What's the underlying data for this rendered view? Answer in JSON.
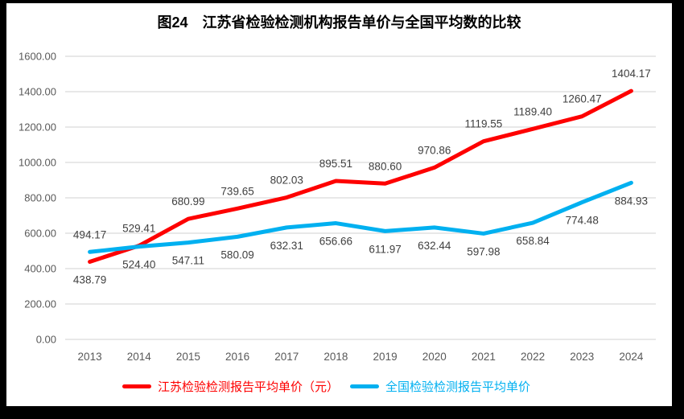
{
  "title": "图24　江苏省检验检测机构报告单价与全国平均数的比较",
  "chart_data": {
    "type": "line",
    "title": "图24　江苏省检验检测机构报告单价与全国平均数的比较",
    "categories": [
      "2013",
      "2014",
      "2015",
      "2016",
      "2017",
      "2018",
      "2019",
      "2020",
      "2021",
      "2022",
      "2023",
      "2024"
    ],
    "series": [
      {
        "name": "江苏检验检测报告平均单价（元）",
        "color": "#FE0000",
        "values": [
          438.79,
          529.41,
          680.99,
          739.65,
          802.03,
          895.51,
          880.6,
          970.86,
          1119.55,
          1189.4,
          1260.47,
          1404.17
        ]
      },
      {
        "name": "全国检验检测报告平均单价",
        "color": "#00B0F0",
        "values": [
          494.17,
          524.4,
          547.11,
          580.09,
          632.31,
          656.66,
          611.97,
          632.44,
          597.98,
          658.84,
          774.48,
          884.93
        ]
      }
    ],
    "ylim": [
      0,
      1600
    ],
    "ytick_step": 200,
    "ytick_format_decimals": 2,
    "grid": true,
    "data_labels": true,
    "legend_position": "bottom"
  },
  "colors": {
    "gridline": "#D9D9D9",
    "tick_label": "#595959",
    "data_label": "#404040",
    "frame": "#000000",
    "background": "#FFFFFF"
  }
}
